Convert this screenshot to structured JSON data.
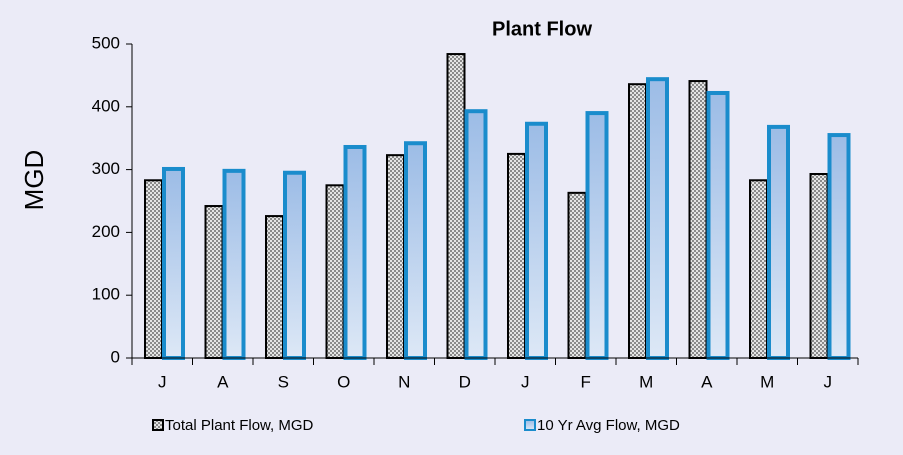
{
  "chart_data": {
    "type": "bar",
    "title": "Plant Flow",
    "y_label": "MGD",
    "categories": [
      "J",
      "A",
      "S",
      "O",
      "N",
      "D",
      "J",
      "F",
      "M",
      "A",
      "M",
      "J"
    ],
    "series": [
      {
        "name": "Total Plant Flow, MGD",
        "color": "#000000",
        "values": [
          283,
          242,
          226,
          275,
          323,
          484,
          325,
          263,
          436,
          441,
          283,
          293
        ]
      },
      {
        "name": "10 Yr Avg Flow, MGD",
        "color": "#1a8ccc",
        "values": [
          301,
          298,
          295,
          336,
          342,
          393,
          373,
          390,
          444,
          422,
          368,
          355
        ]
      }
    ],
    "ylim": [
      0,
      500
    ],
    "yticks": [
      0,
      100,
      200,
      300,
      400,
      500
    ]
  }
}
